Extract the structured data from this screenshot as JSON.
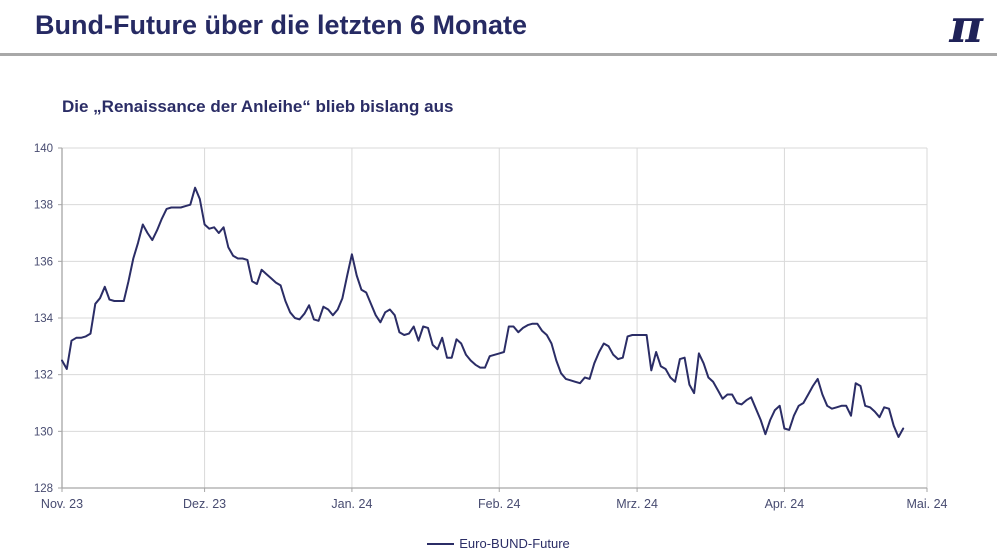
{
  "header": {
    "title": "Bund-Future über die letzten 6 Monate",
    "logo_glyph": "π"
  },
  "colors": {
    "navy_accent": "#262a63",
    "series_line": "#2b2d66",
    "tick_label": "#474b70",
    "gridline": "#d9d9d9",
    "axis_line": "#a6a6a6",
    "divider": "#a8a8a8",
    "background": "#ffffff"
  },
  "chart_data": {
    "type": "line",
    "title": "Die „Renaissance der Anleihe“ blieb bislang aus",
    "xlabel": "",
    "ylabel": "",
    "ylim": [
      128,
      140
    ],
    "y_ticks": [
      128,
      130,
      132,
      134,
      136,
      138,
      140
    ],
    "x_tick_labels": [
      "Nov. 23",
      "Dez. 23",
      "Jan. 24",
      "Feb. 24",
      "Mrz. 24",
      "Apr. 24",
      "Mai. 24"
    ],
    "x_tick_days": [
      0,
      30,
      61,
      92,
      121,
      152,
      182
    ],
    "x_domain_days": [
      0,
      182
    ],
    "grid": true,
    "legend": {
      "position": "bottom-center",
      "entries": [
        "Euro-BUND-Future"
      ]
    },
    "series": [
      {
        "name": "Euro-BUND-Future",
        "color": "#2b2d66",
        "start_day": 0,
        "values": [
          132.5,
          132.2,
          133.2,
          133.3,
          133.3,
          133.35,
          133.45,
          134.5,
          134.7,
          135.1,
          134.65,
          134.6,
          134.6,
          134.6,
          135.3,
          136.1,
          136.65,
          137.3,
          137.0,
          136.75,
          137.1,
          137.5,
          137.85,
          137.9,
          137.9,
          137.9,
          137.95,
          138.0,
          138.6,
          138.2,
          137.3,
          137.15,
          137.2,
          137.0,
          137.2,
          136.5,
          136.2,
          136.1,
          136.1,
          136.05,
          135.3,
          135.2,
          135.7,
          135.55,
          135.4,
          135.25,
          135.15,
          134.6,
          134.2,
          134.0,
          133.95,
          134.15,
          134.45,
          133.95,
          133.9,
          134.4,
          134.3,
          134.1,
          134.3,
          134.7,
          135.5,
          136.25,
          135.5,
          135.0,
          134.9,
          134.5,
          134.1,
          133.85,
          134.2,
          134.3,
          134.1,
          133.5,
          133.4,
          133.45,
          133.7,
          133.2,
          133.7,
          133.65,
          133.05,
          132.9,
          133.3,
          132.6,
          132.6,
          133.25,
          133.1,
          132.7,
          132.5,
          132.35,
          132.25,
          132.25,
          132.65,
          132.7,
          132.75,
          132.8,
          133.7,
          133.7,
          133.5,
          133.65,
          133.75,
          133.8,
          133.8,
          133.55,
          133.4,
          133.1,
          132.5,
          132.05,
          131.85,
          131.8,
          131.75,
          131.7,
          131.9,
          131.85,
          132.4,
          132.8,
          133.1,
          133.0,
          132.7,
          132.55,
          132.6,
          133.35,
          133.4,
          133.4,
          133.4,
          133.4,
          132.15,
          132.8,
          132.3,
          132.2,
          131.9,
          131.75,
          132.55,
          132.6,
          131.65,
          131.35,
          132.75,
          132.4,
          131.9,
          131.75,
          131.45,
          131.15,
          131.3,
          131.3,
          131.0,
          130.95,
          131.1,
          131.2,
          130.8,
          130.4,
          129.9,
          130.4,
          130.75,
          130.9,
          130.1,
          130.05,
          130.55,
          130.9,
          131.0,
          131.3,
          131.6,
          131.85,
          131.3,
          130.9,
          130.8,
          130.85,
          130.9,
          130.9,
          130.55,
          131.7,
          131.6,
          130.9,
          130.85,
          130.7,
          130.5,
          130.85,
          130.8,
          130.2,
          129.8,
          130.1
        ]
      }
    ]
  }
}
